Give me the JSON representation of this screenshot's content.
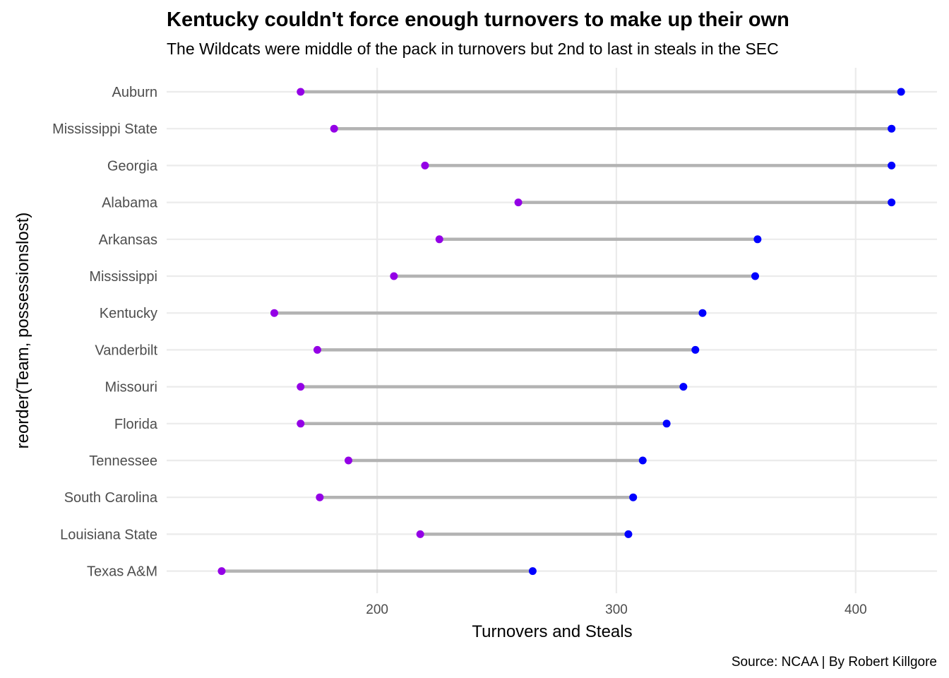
{
  "chart_data": {
    "type": "dumbbell",
    "title": "Kentucky couldn't force enough turnovers to make up their own",
    "subtitle": "The Wildcats were middle of the pack in turnovers but 2nd to last in steals in the SEC",
    "xlabel": "Turnovers and Steals",
    "ylabel": "reorder(Team, possessionslost)",
    "caption": "Source: NCAA | By Robert Killgore",
    "xlim": [
      112,
      434
    ],
    "xticks": [
      200,
      300,
      400
    ],
    "grid": true,
    "colors": {
      "steals": "#9400e6",
      "turnovers": "#0000ff",
      "segment": "#b3b3b3",
      "grid": "#ebebeb"
    },
    "categories": [
      "Auburn",
      "Mississippi State",
      "Georgia",
      "Alabama",
      "Arkansas",
      "Mississippi",
      "Kentucky",
      "Vanderbilt",
      "Missouri",
      "Florida",
      "Tennessee",
      "South Carolina",
      "Louisiana State",
      "Texas A&M"
    ],
    "steals": [
      168,
      182,
      220,
      259,
      226,
      207,
      157,
      175,
      168,
      168,
      188,
      176,
      218,
      135
    ],
    "turnovers": [
      419,
      415,
      415,
      415,
      359,
      358,
      336,
      333,
      328,
      321,
      311,
      307,
      305,
      265
    ]
  }
}
